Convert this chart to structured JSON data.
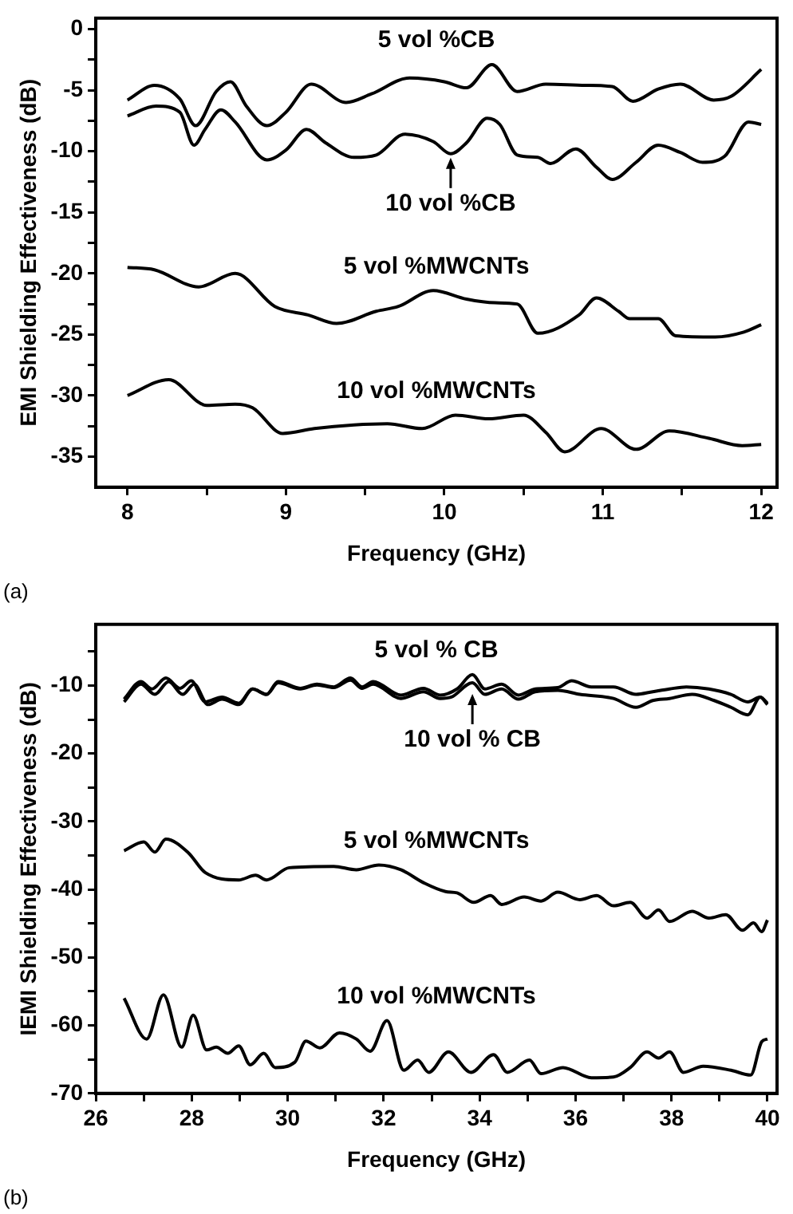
{
  "chart_data": [
    {
      "type": "line",
      "xlabel": "Frequency (GHz)",
      "ylabel": "EMI Shielding Effectiveness (dB)",
      "xlim": [
        7.8,
        12.1
      ],
      "xticks": [
        8,
        {
          "value": 8.5,
          "label": null
        },
        9,
        {
          "value": 9.5,
          "label": null
        },
        10,
        {
          "value": 10.5,
          "label": null
        },
        11,
        {
          "value": 11.5,
          "label": null
        },
        12
      ],
      "ylim": [
        -37.5,
        0.9
      ],
      "yticks": [
        0,
        {
          "value": -2.5,
          "label": null
        },
        -5,
        {
          "value": -7.5,
          "label": null
        },
        -10,
        {
          "value": -12.5,
          "label": null
        },
        -15,
        {
          "value": -17.5,
          "label": null
        },
        -20,
        {
          "value": -22.5,
          "label": null
        },
        -25,
        {
          "value": -27.5,
          "label": null
        },
        -30,
        {
          "value": -32.5,
          "label": null
        },
        -35
      ],
      "series": [
        {
          "name": "5 vol %CB",
          "color": "#000000",
          "x": [
            8.0,
            8.17,
            8.33,
            8.43,
            8.56,
            8.65,
            8.75,
            8.88,
            9.0,
            9.16,
            9.38,
            9.54,
            9.78,
            10.0,
            10.14,
            10.3,
            10.46,
            10.64,
            10.89,
            11.06,
            11.19,
            11.35,
            11.49,
            11.7,
            11.81,
            12.0
          ],
          "values": [
            -5.8,
            -4.6,
            -5.7,
            -7.9,
            -5.1,
            -4.3,
            -6.3,
            -7.9,
            -6.8,
            -4.5,
            -6.0,
            -5.3,
            -4.0,
            -4.3,
            -4.8,
            -2.9,
            -5.1,
            -4.5,
            -4.6,
            -4.7,
            -5.9,
            -4.9,
            -4.5,
            -5.8,
            -5.5,
            -3.3
          ]
        },
        {
          "color": "#000000",
          "x": [
            8.0,
            8.18,
            8.33,
            8.42,
            8.49,
            8.59,
            8.68,
            8.88,
            9.0,
            9.13,
            9.25,
            9.43,
            9.57,
            9.75,
            9.93,
            10.04,
            10.14,
            10.27,
            10.35,
            10.46,
            10.59,
            10.67,
            10.83,
            10.96,
            11.06,
            11.21,
            11.35,
            11.49,
            11.63,
            11.77,
            11.92,
            12.0
          ],
          "values": [
            -7.1,
            -6.3,
            -6.8,
            -9.5,
            -8.2,
            -6.6,
            -7.6,
            -10.7,
            -9.9,
            -8.2,
            -9.3,
            -10.5,
            -10.3,
            -8.6,
            -9.2,
            -10.2,
            -9.3,
            -7.3,
            -7.8,
            -10.3,
            -10.5,
            -11.0,
            -9.8,
            -11.3,
            -12.3,
            -10.9,
            -9.5,
            -10.1,
            -10.9,
            -10.4,
            -7.6,
            -7.8
          ]
        },
        {
          "name": "5 vol %MWCNTs",
          "color": "#000000",
          "x": [
            8.0,
            8.17,
            8.45,
            8.68,
            8.93,
            9.14,
            9.32,
            9.57,
            9.71,
            9.93,
            10.14,
            10.32,
            10.46,
            10.59,
            10.85,
            10.96,
            11.1,
            11.17,
            11.35,
            11.46,
            11.71,
            11.89,
            12.0
          ],
          "values": [
            -19.5,
            -19.7,
            -21.1,
            -20.0,
            -22.7,
            -23.4,
            -24.1,
            -23.1,
            -22.7,
            -21.4,
            -22.1,
            -22.4,
            -22.5,
            -24.9,
            -23.4,
            -22.0,
            -23.1,
            -23.7,
            -23.7,
            -25.1,
            -25.2,
            -24.8,
            -24.2
          ]
        },
        {
          "name": "10 vol %MWCNTs",
          "color": "#000000",
          "x": [
            8.0,
            8.26,
            8.5,
            8.68,
            8.79,
            8.98,
            9.18,
            9.43,
            9.64,
            9.86,
            10.07,
            10.28,
            10.5,
            10.64,
            10.76,
            10.99,
            11.21,
            11.42,
            11.67,
            11.88,
            12.0
          ],
          "values": [
            -30.0,
            -28.7,
            -30.8,
            -30.7,
            -31.0,
            -33.1,
            -32.7,
            -32.4,
            -32.3,
            -32.7,
            -31.6,
            -31.9,
            -31.6,
            -33.0,
            -34.6,
            -32.7,
            -34.4,
            -32.9,
            -33.5,
            -34.1,
            -34.0
          ]
        }
      ],
      "annotations": [
        {
          "text": "10 vol %CB",
          "x": 10.04,
          "y": -10.4
        },
        "(a)"
      ]
    },
    {
      "type": "line",
      "xlabel": "Frequency (GHz)",
      "ylabel": "IEMI Shielding Effectiveness (dB)",
      "xlim": [
        26,
        40.2
      ],
      "xticks": [
        26,
        {
          "value": 27,
          "label": null
        },
        28,
        {
          "value": 29,
          "label": null
        },
        30,
        {
          "value": 31,
          "label": null
        },
        32,
        {
          "value": 33,
          "label": null
        },
        34,
        {
          "value": 35,
          "label": null
        },
        36,
        {
          "value": 37,
          "label": null
        },
        38,
        {
          "value": 39,
          "label": null
        },
        40
      ],
      "ylim": [
        -70,
        -1
      ],
      "yticks": [
        {
          "value": -5,
          "label": null
        },
        -10,
        {
          "value": -15,
          "label": null
        },
        -20,
        {
          "value": -25,
          "label": null
        },
        -30,
        {
          "value": -35,
          "label": null
        },
        -40,
        {
          "value": -45,
          "label": null
        },
        -50,
        {
          "value": -55,
          "label": null
        },
        -60,
        {
          "value": -65,
          "label": null
        },
        -70
      ],
      "series": [
        {
          "name": "5 vol % CB",
          "color": "#000000",
          "x": [
            26.59,
            26.94,
            27.17,
            27.46,
            27.76,
            27.99,
            28.28,
            28.63,
            28.98,
            29.27,
            29.56,
            29.8,
            30.26,
            30.61,
            30.96,
            31.31,
            31.55,
            31.78,
            32.36,
            32.83,
            33.18,
            33.53,
            33.85,
            34.11,
            34.46,
            34.81,
            35.16,
            35.63,
            35.92,
            36.33,
            36.79,
            37.26,
            37.61,
            37.96,
            38.31,
            38.78,
            39.24,
            39.59,
            39.85,
            40.0
          ],
          "values": [
            -12.0,
            -9.4,
            -10.5,
            -8.9,
            -10.4,
            -9.3,
            -12.4,
            -11.7,
            -12.6,
            -10.5,
            -11.3,
            -9.4,
            -10.4,
            -9.8,
            -10.2,
            -8.9,
            -10.2,
            -9.4,
            -11.4,
            -10.4,
            -11.4,
            -10.5,
            -8.4,
            -10.5,
            -9.8,
            -11.4,
            -10.5,
            -10.3,
            -9.3,
            -10.2,
            -10.2,
            -11.3,
            -10.9,
            -10.5,
            -10.2,
            -10.5,
            -11.3,
            -12.4,
            -11.7,
            -12.6
          ]
        },
        {
          "color": "#000000",
          "x": [
            26.59,
            26.94,
            27.23,
            27.52,
            27.81,
            28.05,
            28.34,
            28.63,
            28.98,
            29.27,
            29.56,
            29.8,
            30.26,
            30.61,
            30.96,
            31.31,
            31.55,
            31.78,
            32.36,
            32.83,
            33.18,
            33.41,
            33.85,
            34.11,
            34.46,
            34.81,
            35.16,
            35.63,
            36.09,
            36.79,
            37.26,
            37.61,
            37.96,
            38.43,
            38.89,
            39.24,
            39.59,
            39.85,
            40.0
          ],
          "values": [
            -12.4,
            -9.8,
            -11.3,
            -9.4,
            -11.3,
            -9.8,
            -12.8,
            -12.0,
            -12.8,
            -10.5,
            -11.3,
            -9.6,
            -10.5,
            -9.9,
            -10.3,
            -9.2,
            -10.4,
            -9.8,
            -11.9,
            -10.9,
            -11.9,
            -11.7,
            -9.6,
            -11.3,
            -10.5,
            -12.0,
            -10.9,
            -10.7,
            -11.3,
            -11.9,
            -13.2,
            -12.2,
            -11.9,
            -11.3,
            -12.2,
            -13.2,
            -14.3,
            -11.7,
            -12.8
          ]
        },
        {
          "name": "5 vol %MWCNTs",
          "color": "#000000",
          "x": [
            26.59,
            27.0,
            27.23,
            27.46,
            27.93,
            28.28,
            28.98,
            29.33,
            29.56,
            30.03,
            30.96,
            31.43,
            31.9,
            32.36,
            32.83,
            33.29,
            33.53,
            33.88,
            34.23,
            34.46,
            34.93,
            35.28,
            35.63,
            36.09,
            36.44,
            36.79,
            37.14,
            37.49,
            37.73,
            37.96,
            38.43,
            38.78,
            39.13,
            39.48,
            39.71,
            39.88,
            40.0
          ],
          "values": [
            -34.3,
            -33.0,
            -34.5,
            -32.6,
            -34.6,
            -37.5,
            -38.6,
            -37.9,
            -38.6,
            -36.8,
            -36.6,
            -37.1,
            -36.4,
            -37.1,
            -39.0,
            -40.3,
            -40.5,
            -41.9,
            -40.9,
            -42.2,
            -41.1,
            -41.7,
            -40.4,
            -41.5,
            -40.9,
            -42.4,
            -41.9,
            -44.2,
            -43.0,
            -44.7,
            -43.2,
            -44.2,
            -43.7,
            -46.0,
            -44.9,
            -46.2,
            -44.5
          ]
        },
        {
          "name": "10 vol %MWCNTs",
          "color": "#000000",
          "x": [
            26.59,
            27.06,
            27.41,
            27.79,
            28.03,
            28.31,
            28.51,
            28.75,
            28.98,
            29.22,
            29.5,
            29.74,
            30.15,
            30.38,
            30.67,
            31.08,
            31.43,
            31.72,
            32.07,
            32.42,
            32.71,
            32.94,
            33.35,
            33.82,
            34.29,
            34.58,
            35.04,
            35.28,
            35.74,
            36.33,
            36.79,
            37.14,
            37.49,
            37.73,
            37.96,
            38.25,
            38.66,
            39.24,
            39.65,
            39.88,
            40.0
          ],
          "values": [
            -56.0,
            -62.0,
            -55.5,
            -63.2,
            -58.5,
            -63.6,
            -63.2,
            -64.1,
            -63.0,
            -65.8,
            -64.1,
            -66.2,
            -65.4,
            -62.3,
            -63.3,
            -61.1,
            -62.0,
            -63.8,
            -59.3,
            -66.6,
            -65.1,
            -66.9,
            -63.9,
            -66.9,
            -64.3,
            -66.9,
            -65.1,
            -67.1,
            -66.2,
            -67.7,
            -67.6,
            -66.2,
            -63.9,
            -64.8,
            -63.9,
            -66.9,
            -66.0,
            -66.6,
            -67.3,
            -62.4,
            -62.0
          ]
        }
      ],
      "annotations": [
        {
          "text": "10 vol % CB",
          "x": 33.85,
          "y": -11.0
        },
        "(b)"
      ]
    }
  ]
}
